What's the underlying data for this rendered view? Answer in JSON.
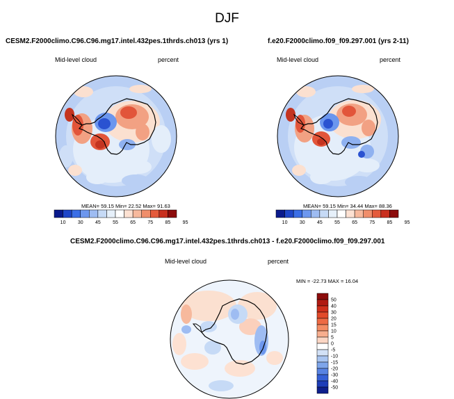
{
  "page": {
    "title": "DJF",
    "panels": [
      {
        "case_title": "CESM2.F2000climo.C96.C96.mg17.intel.432pes.1thrds.ch013 (yrs 1)",
        "variable": "Mid-level cloud",
        "units": "percent",
        "stats_label": "MEAN=  59.15  Min=  22.52  Max=  91.63",
        "colorbar": {
          "ticks": [
            "10",
            "30",
            "45",
            "55",
            "65",
            "75",
            "85",
            "95"
          ],
          "colors": [
            "#0a1a8c",
            "#1f46c8",
            "#3b6ee6",
            "#6d97ee",
            "#9ebcf2",
            "#c6daf6",
            "#e6f0fa",
            "#ffffff",
            "#fde1d2",
            "#f7b99d",
            "#f08e6b",
            "#e45b3c",
            "#c9301f",
            "#8c0c0c"
          ]
        }
      },
      {
        "case_title": "f.e20.F2000climo.f09_f09.297.001 (yrs 2-11)",
        "variable": "Mid-level cloud",
        "units": "percent",
        "stats_label": "MEAN=  59.15  Min=  34.44  Max=  88.36",
        "colorbar": {
          "ticks": [
            "10",
            "30",
            "45",
            "55",
            "65",
            "75",
            "85",
            "95"
          ],
          "colors": [
            "#0a1a8c",
            "#1f46c8",
            "#3b6ee6",
            "#6d97ee",
            "#9ebcf2",
            "#c6daf6",
            "#e6f0fa",
            "#ffffff",
            "#fde1d2",
            "#f7b99d",
            "#f08e6b",
            "#e45b3c",
            "#c9301f",
            "#8c0c0c"
          ]
        }
      }
    ],
    "diff_panel": {
      "case_title": "CESM2.F2000climo.C96.C96.mg17.intel.432pes.1thrds.ch013 - f.e20.F2000climo.f09_f09.297.001",
      "variable": "Mid-level cloud",
      "units": "percent",
      "stats_label": "MIN = -22.73 MAX = 16.04",
      "colorbar": {
        "ticks": [
          "50",
          "40",
          "30",
          "20",
          "15",
          "10",
          "5",
          "0",
          "-5",
          "-10",
          "-15",
          "-20",
          "-30",
          "-40",
          "-50"
        ],
        "colors": [
          "#8c0c0c",
          "#b01a12",
          "#cf2f1c",
          "#e24a2a",
          "#ee6a44",
          "#f48c64",
          "#f7ae8e",
          "#fbd6c4",
          "#ffffff",
          "#d2e1f6",
          "#a8c4f0",
          "#7ea5ea",
          "#5883e2",
          "#3560d6",
          "#1d3db8",
          "#0e1f8c"
        ]
      }
    }
  },
  "chart_data": [
    {
      "type": "heatmap",
      "title": "CESM2.F2000climo.C96.C96.mg17.intel.432pes.1thrds.ch013 (yrs 1)",
      "projection": "south polar stereographic",
      "variable": "Mid-level cloud",
      "units": "percent",
      "mean": 59.15,
      "min": 22.52,
      "max": 91.63,
      "levels": [
        10,
        30,
        45,
        55,
        65,
        75,
        85,
        95
      ]
    },
    {
      "type": "heatmap",
      "title": "f.e20.F2000climo.f09_f09.297.001 (yrs 2-11)",
      "projection": "south polar stereographic",
      "variable": "Mid-level cloud",
      "units": "percent",
      "mean": 59.15,
      "min": 34.44,
      "max": 88.36,
      "levels": [
        10,
        30,
        45,
        55,
        65,
        75,
        85,
        95
      ]
    },
    {
      "type": "heatmap",
      "title": "CESM2.F2000climo.C96.C96.mg17.intel.432pes.1thrds.ch013 - f.e20.F2000climo.f09_f09.297.001",
      "projection": "south polar stereographic",
      "variable": "Mid-level cloud",
      "units": "percent",
      "min": -22.73,
      "max": 16.04,
      "levels": [
        -50,
        -40,
        -30,
        -20,
        -15,
        -10,
        -5,
        0,
        5,
        10,
        15,
        20,
        30,
        40,
        50
      ]
    }
  ]
}
